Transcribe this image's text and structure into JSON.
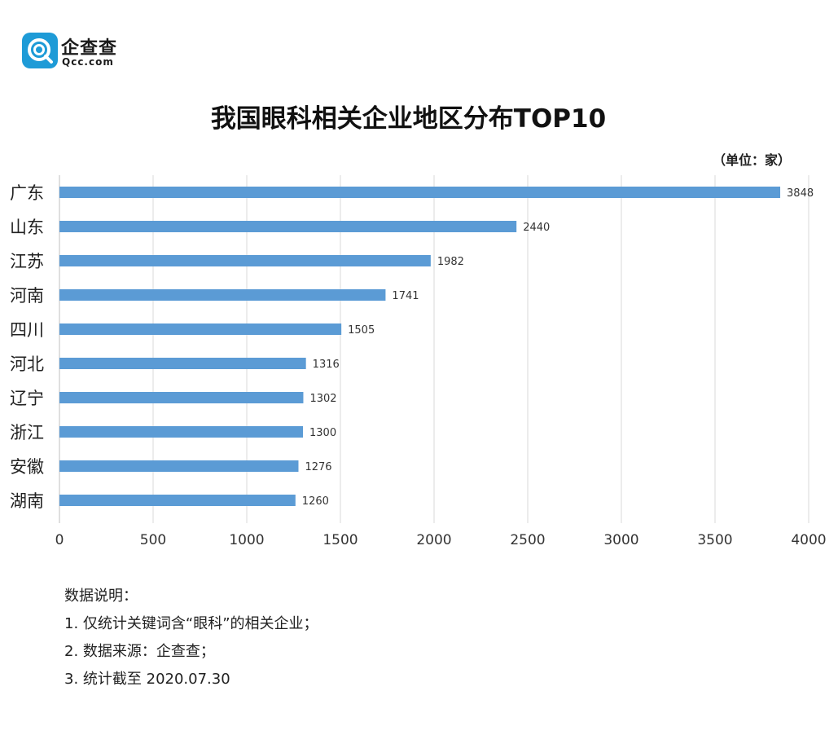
{
  "logo": {
    "name": "企查查",
    "domain": "Qcc.com",
    "icon": "qcc-logo-icon",
    "color": "#1e9bd7"
  },
  "chart_data": {
    "type": "bar",
    "orientation": "horizontal",
    "title": "我国眼科相关企业地区分布TOP10",
    "unit": "（单位：家）",
    "categories": [
      "广东",
      "山东",
      "江苏",
      "河南",
      "四川",
      "河北",
      "辽宁",
      "浙江",
      "安徽",
      "湖南"
    ],
    "values": [
      3848,
      2440,
      1982,
      1741,
      1505,
      1316,
      1302,
      1300,
      1276,
      1260
    ],
    "xlim": [
      0,
      4000
    ],
    "xticks": [
      "0",
      "500",
      "1000",
      "1500",
      "2000",
      "2500",
      "3000",
      "3500",
      "4000"
    ],
    "grid": true,
    "bar_color": "#5b9bd5",
    "xlabel": "",
    "ylabel": ""
  },
  "notes": {
    "heading": "数据说明：",
    "items": [
      "1. 仅统计关键词含“眼科”的相关企业；",
      "2. 数据来源：企查查；",
      "3. 统计截至 2020.07.30"
    ]
  }
}
